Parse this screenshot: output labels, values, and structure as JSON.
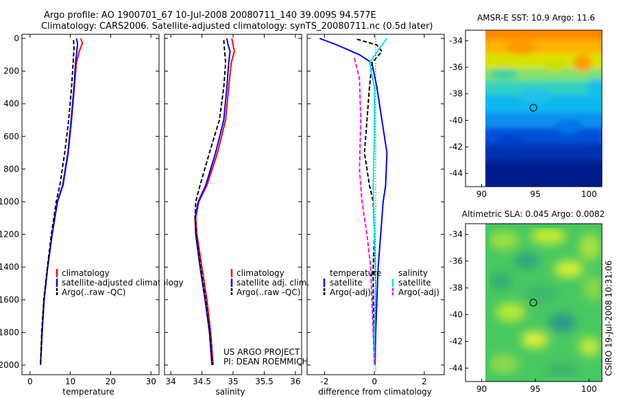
{
  "title_line1": "Argo profile: AO 1900701_67 10-Jul-2008 20080711_140 39.009S 94.577E",
  "title_line2": "Climatology: CARS2006. Satellite-adjusted climatology: synTS_20080711.nc (0.5d later)",
  "credit": "CSIRO 19-Jul-2008 10:31:06",
  "project_line1": "US ARGO PROJECT",
  "project_line2": "PI: DEAN ROEMMICH",
  "colors": {
    "climatology": "#ff0000",
    "satellite": "#0000ff",
    "argo": "#000000",
    "salinity_satellite": "#00e5ee",
    "salinity_argo": "#ff00ff"
  },
  "chart_data": [
    {
      "type": "line",
      "id": "temperature_profile",
      "xlabel": "temperature",
      "ylabel": "",
      "xlim": [
        -2,
        32
      ],
      "ylim": [
        2050,
        0
      ],
      "x_ticks": [
        0,
        10,
        20,
        30
      ],
      "y_ticks": [
        0,
        200,
        400,
        600,
        800,
        1000,
        1200,
        1400,
        1600,
        1800,
        2000
      ],
      "legend": [
        "climatology",
        "satellite-adjusted climatology",
        "Argo(..raw -QC)"
      ],
      "series": [
        {
          "name": "climatology",
          "color": "#ff0000",
          "dash": "solid",
          "points": [
            [
              12.6,
              0
            ],
            [
              13.0,
              30
            ],
            [
              12.2,
              80
            ],
            [
              11.5,
              150
            ],
            [
              11.0,
              300
            ],
            [
              10.3,
              500
            ],
            [
              9.5,
              700
            ],
            [
              8.2,
              900
            ],
            [
              6.8,
              1000
            ],
            [
              5.5,
              1200
            ],
            [
              4.4,
              1400
            ],
            [
              3.5,
              1600
            ],
            [
              3.0,
              1800
            ],
            [
              2.6,
              2000
            ]
          ]
        },
        {
          "name": "satellite-adjusted climatology",
          "color": "#0000ff",
          "dash": "solid",
          "points": [
            [
              11.5,
              0
            ],
            [
              11.8,
              30
            ],
            [
              11.6,
              80
            ],
            [
              11.3,
              150
            ],
            [
              10.9,
              300
            ],
            [
              10.2,
              500
            ],
            [
              9.4,
              700
            ],
            [
              8.1,
              900
            ],
            [
              6.8,
              1000
            ],
            [
              5.5,
              1200
            ],
            [
              4.4,
              1400
            ],
            [
              3.5,
              1600
            ],
            [
              3.0,
              1800
            ],
            [
              2.6,
              2000
            ]
          ]
        },
        {
          "name": "Argo(..raw -QC)",
          "color": "#000000",
          "dash": "dashed",
          "points": [
            [
              10.8,
              10
            ],
            [
              10.9,
              60
            ],
            [
              10.7,
              150
            ],
            [
              10.3,
              300
            ],
            [
              9.6,
              500
            ],
            [
              8.6,
              700
            ],
            [
              7.4,
              900
            ],
            [
              6.5,
              1000
            ],
            [
              5.3,
              1200
            ],
            [
              4.3,
              1400
            ],
            [
              3.4,
              1600
            ],
            [
              2.9,
              1800
            ],
            [
              2.6,
              2000
            ]
          ]
        }
      ]
    },
    {
      "type": "line",
      "id": "salinity_profile",
      "xlabel": "salinity",
      "xlim": [
        33.9,
        36.1
      ],
      "ylim": [
        2050,
        0
      ],
      "x_ticks": [
        34,
        34.5,
        35,
        35.5,
        36
      ],
      "legend": [
        "climatology",
        "satellite adj. clim.",
        "Argo(..raw -QC)"
      ],
      "series": [
        {
          "name": "climatology",
          "color": "#ff0000",
          "dash": "solid",
          "points": [
            [
              34.98,
              0
            ],
            [
              35.0,
              40
            ],
            [
              35.02,
              80
            ],
            [
              34.97,
              150
            ],
            [
              34.93,
              300
            ],
            [
              34.88,
              500
            ],
            [
              34.75,
              700
            ],
            [
              34.58,
              900
            ],
            [
              34.45,
              1000
            ],
            [
              34.4,
              1100
            ],
            [
              34.42,
              1200
            ],
            [
              34.5,
              1400
            ],
            [
              34.58,
              1600
            ],
            [
              34.64,
              1800
            ],
            [
              34.68,
              2000
            ]
          ]
        },
        {
          "name": "satellite adj. clim.",
          "color": "#0000ff",
          "dash": "solid",
          "points": [
            [
              34.9,
              0
            ],
            [
              34.92,
              40
            ],
            [
              34.95,
              80
            ],
            [
              34.93,
              150
            ],
            [
              34.9,
              300
            ],
            [
              34.85,
              500
            ],
            [
              34.72,
              700
            ],
            [
              34.56,
              900
            ],
            [
              34.44,
              1000
            ],
            [
              34.39,
              1100
            ],
            [
              34.4,
              1200
            ],
            [
              34.47,
              1400
            ],
            [
              34.55,
              1600
            ],
            [
              34.62,
              1800
            ],
            [
              34.66,
              2000
            ]
          ]
        },
        {
          "name": "Argo(..raw -QC)",
          "color": "#000000",
          "dash": "dashed",
          "points": [
            [
              34.85,
              10
            ],
            [
              34.86,
              60
            ],
            [
              34.88,
              150
            ],
            [
              34.85,
              300
            ],
            [
              34.78,
              500
            ],
            [
              34.62,
              700
            ],
            [
              34.47,
              900
            ],
            [
              34.4,
              1000
            ],
            [
              34.39,
              1100
            ],
            [
              34.41,
              1200
            ],
            [
              34.48,
              1400
            ],
            [
              34.56,
              1600
            ],
            [
              34.63,
              1800
            ],
            [
              34.67,
              2000
            ]
          ]
        }
      ]
    },
    {
      "type": "line",
      "id": "difference_profile",
      "xlabel": "difference from climatology",
      "xlim": [
        -2.7,
        2.8
      ],
      "ylim": [
        2050,
        0
      ],
      "x_ticks": [
        -2,
        0,
        2
      ],
      "legend_temperature_header": "temperature",
      "legend_salinity_header": "salinity",
      "legend": [
        "satellite",
        "Argo(-adj)",
        "satellite",
        "Argo(-adj)"
      ],
      "series": [
        {
          "name": "temperature satellite",
          "color": "#0000ff",
          "dash": "solid",
          "points": [
            [
              -2.2,
              0
            ],
            [
              -1.5,
              40
            ],
            [
              -0.6,
              100
            ],
            [
              -0.1,
              150
            ],
            [
              0.1,
              300
            ],
            [
              0.3,
              500
            ],
            [
              0.5,
              700
            ],
            [
              0.45,
              900
            ],
            [
              0.35,
              1000
            ],
            [
              0.25,
              1200
            ],
            [
              0.15,
              1400
            ],
            [
              0.1,
              1600
            ],
            [
              0.05,
              1800
            ],
            [
              0.02,
              2000
            ]
          ]
        },
        {
          "name": "temperature Argo(-adj)",
          "color": "#000000",
          "dash": "dashed",
          "points": [
            [
              -0.7,
              5
            ],
            [
              0.1,
              40
            ],
            [
              0.3,
              80
            ],
            [
              -0.1,
              150
            ],
            [
              -0.2,
              300
            ],
            [
              -0.3,
              500
            ],
            [
              -0.4,
              700
            ],
            [
              -0.2,
              900
            ],
            [
              -0.05,
              1000
            ],
            [
              0.0,
              1200
            ],
            [
              -0.05,
              1400
            ],
            [
              -0.05,
              1600
            ],
            [
              -0.02,
              1800
            ],
            [
              0.0,
              2000
            ]
          ]
        },
        {
          "name": "salinity satellite",
          "color": "#00e5ee",
          "dash": "solid",
          "points": [
            [
              0.5,
              0
            ],
            [
              0.2,
              60
            ],
            [
              -0.2,
              150
            ],
            [
              0.0,
              300
            ],
            [
              0.0,
              600
            ],
            [
              -0.05,
              900
            ],
            [
              0.0,
              1200
            ],
            [
              0.05,
              1500
            ],
            [
              0.0,
              1800
            ],
            [
              0.0,
              2000
            ]
          ]
        },
        {
          "name": "salinity Argo(-adj)",
          "color": "#ff00ff",
          "dash": "dashed",
          "points": [
            [
              -0.8,
              120
            ],
            [
              -0.6,
              250
            ],
            [
              -0.55,
              500
            ],
            [
              -0.6,
              800
            ],
            [
              -0.5,
              1000
            ],
            [
              -0.3,
              1200
            ],
            [
              -0.15,
              1400
            ],
            [
              -0.1,
              1600
            ],
            [
              -0.05,
              1800
            ],
            [
              0.0,
              2000
            ]
          ]
        }
      ]
    },
    {
      "type": "heatmap",
      "id": "sst_map",
      "title": "AMSR-E SST: 10.9  Argo: 11.6",
      "xlim": [
        88.5,
        101.2
      ],
      "ylim": [
        -45,
        -33.2
      ],
      "x_ticks": [
        90,
        95,
        100
      ],
      "y_ticks": [
        -34,
        -36,
        -38,
        -40,
        -42,
        -44
      ],
      "data_extent": {
        "lon": [
          90,
          101.2
        ],
        "lat": [
          -45,
          -33.2
        ]
      },
      "argo_position": {
        "lon": 94.577,
        "lat": -39.009
      }
    },
    {
      "type": "heatmap",
      "id": "sla_map",
      "title": "Altimetric SLA: 0.045  Argo: 0.0082",
      "xlim": [
        88.5,
        101.2
      ],
      "ylim": [
        -45,
        -33.2
      ],
      "x_ticks": [
        90,
        95,
        100
      ],
      "y_ticks": [
        -34,
        -36,
        -38,
        -40,
        -42,
        -44
      ],
      "data_extent": {
        "lon": [
          90,
          101.2
        ],
        "lat": [
          -45,
          -33.2
        ]
      },
      "argo_position": {
        "lon": 94.577,
        "lat": -39.009
      }
    }
  ]
}
